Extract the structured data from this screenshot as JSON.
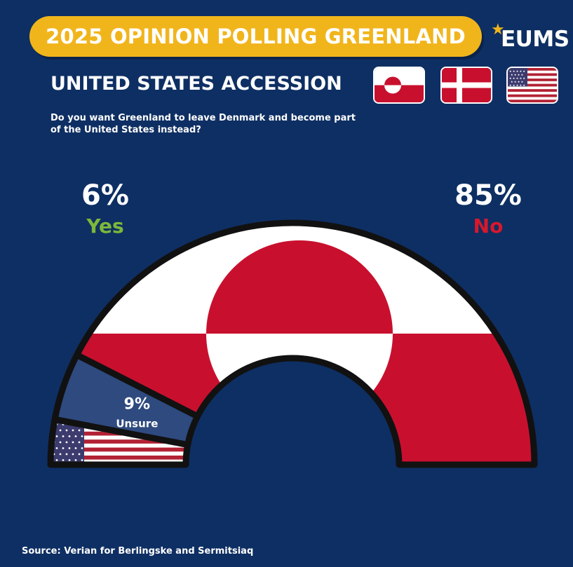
{
  "header": {
    "title": "2025 OPINION POLLING GREENLAND",
    "logo": "EUMS",
    "subtitle": "UNITED STATES ACCESSION",
    "flags": [
      "greenland-flag",
      "denmark-flag",
      "usa-flag"
    ]
  },
  "question": "Do you want Greenland to leave Denmark and become part of the United States instead?",
  "source": "Source: Verian for Berlingske and Sermitsiaq",
  "colors": {
    "background": "#0e2f63",
    "title_pill": "#f1b51c",
    "yes": "#7cb83a",
    "no": "#d8182d",
    "unsure": "#2e4a7f",
    "greenland_red": "#c8102e",
    "outline": "#111111"
  },
  "chart_data": {
    "type": "pie",
    "shape": "semicircle",
    "series": [
      {
        "name": "Yes",
        "value": 6,
        "label": "6%",
        "fill": "usa-flag"
      },
      {
        "name": "Unsure",
        "value": 9,
        "label": "9%",
        "fill": "solid"
      },
      {
        "name": "No",
        "value": 85,
        "label": "85%",
        "fill": "greenland-flag"
      }
    ],
    "unit": "%"
  }
}
